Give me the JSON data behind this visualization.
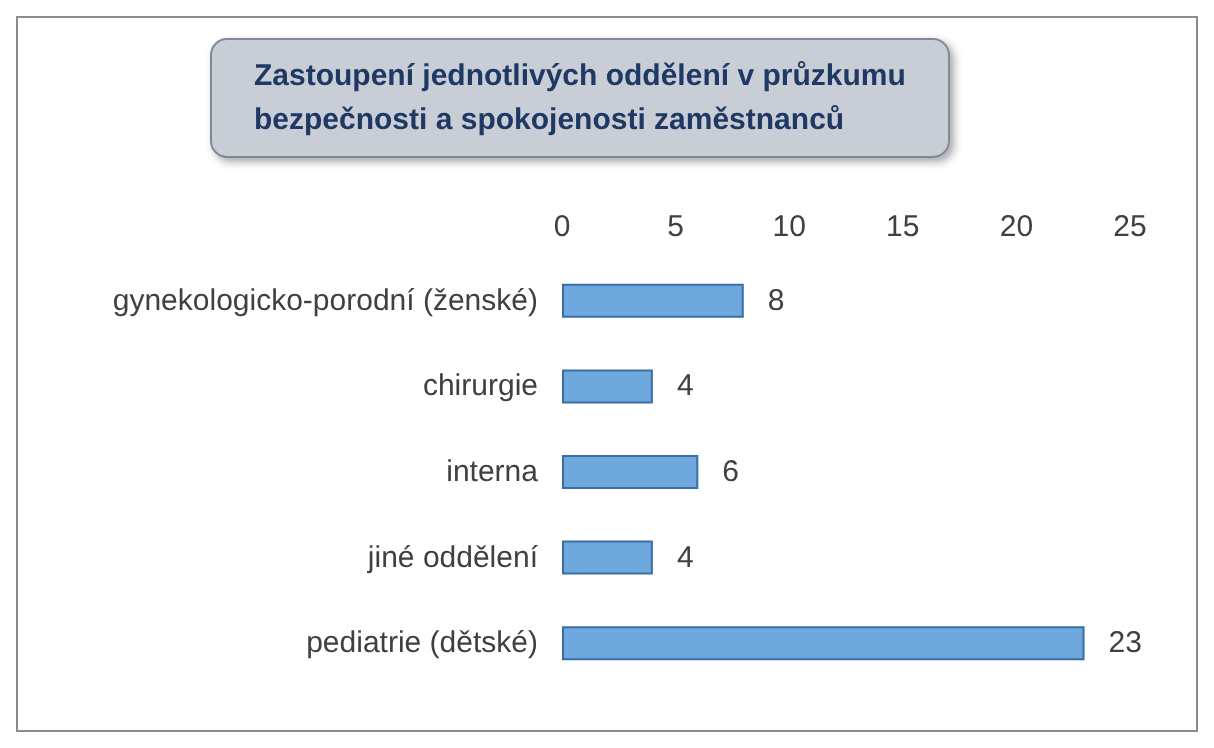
{
  "chart_data": {
    "type": "bar",
    "orientation": "horizontal",
    "title": "Zastoupení jednotlivých oddělení v průzkumu\nbezpečnosti a spokojenosti zaměstnanců",
    "categories": [
      "gynekologicko-porodní (ženské)",
      "chirurgie",
      "interna",
      "jiné oddělení",
      "pediatrie (dětské)"
    ],
    "values": [
      8,
      4,
      6,
      4,
      23
    ],
    "color": "#6fa8dc",
    "xlim": [
      0,
      25
    ],
    "xticks": [
      0,
      5,
      10,
      15,
      20,
      25
    ],
    "grid": false,
    "data_labels": true
  }
}
